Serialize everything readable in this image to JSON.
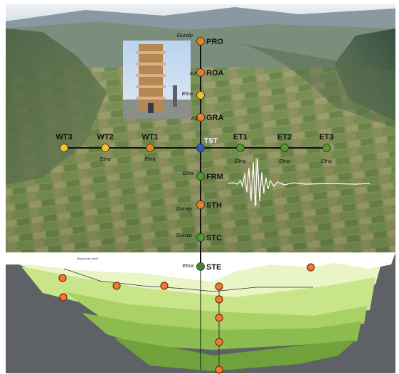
{
  "figure": {
    "section_caption": "Mygdonian basin"
  },
  "stations": {
    "vertical_line": [
      {
        "id": "PRO",
        "instrument": "Guralp",
        "color": "#e8821e"
      },
      {
        "id": "ROA",
        "instrument": "K2",
        "color": "#e8821e"
      },
      {
        "id": "",
        "instrument": "Etna",
        "color": "#f2c22a"
      },
      {
        "id": "GRA",
        "instrument": "K2",
        "color": "#e8821e"
      },
      {
        "id": "TST",
        "instrument": "",
        "color": "#2f56c8"
      },
      {
        "id": "FRM",
        "instrument": "Etna",
        "color": "#4e9a2c"
      },
      {
        "id": "STH",
        "instrument": "Guralp",
        "color": "#e8821e"
      },
      {
        "id": "STC",
        "instrument": "Guralp",
        "color": "#4e9a2c"
      },
      {
        "id": "STE",
        "instrument": "Etna",
        "color": "#3d8a2a"
      }
    ],
    "horizontal_line": [
      {
        "id": "WT3",
        "instrument": "",
        "color": "#f2c22a"
      },
      {
        "id": "WT2",
        "instrument": "Etna",
        "color": "#f2c22a"
      },
      {
        "id": "WT1",
        "instrument": "Etna",
        "color": "#e8821e"
      },
      {
        "id": "ET1",
        "instrument": "Etna",
        "color": "#4e9a2c"
      },
      {
        "id": "ET2",
        "instrument": "Etna",
        "color": "#4e9a2c"
      },
      {
        "id": "ET3",
        "instrument": "Etna",
        "color": "#4e9a2c"
      }
    ]
  },
  "colors": {
    "station_orange": "#e8821e",
    "station_yellow": "#f2c22a",
    "station_green": "#4e9a2c",
    "station_blue": "#2f56c8",
    "borehole_marker": "#f07a2e",
    "layer_colors": [
      "#eaf5c6",
      "#c9e58a",
      "#a9d166",
      "#8cbc50",
      "#6fa23a"
    ]
  }
}
